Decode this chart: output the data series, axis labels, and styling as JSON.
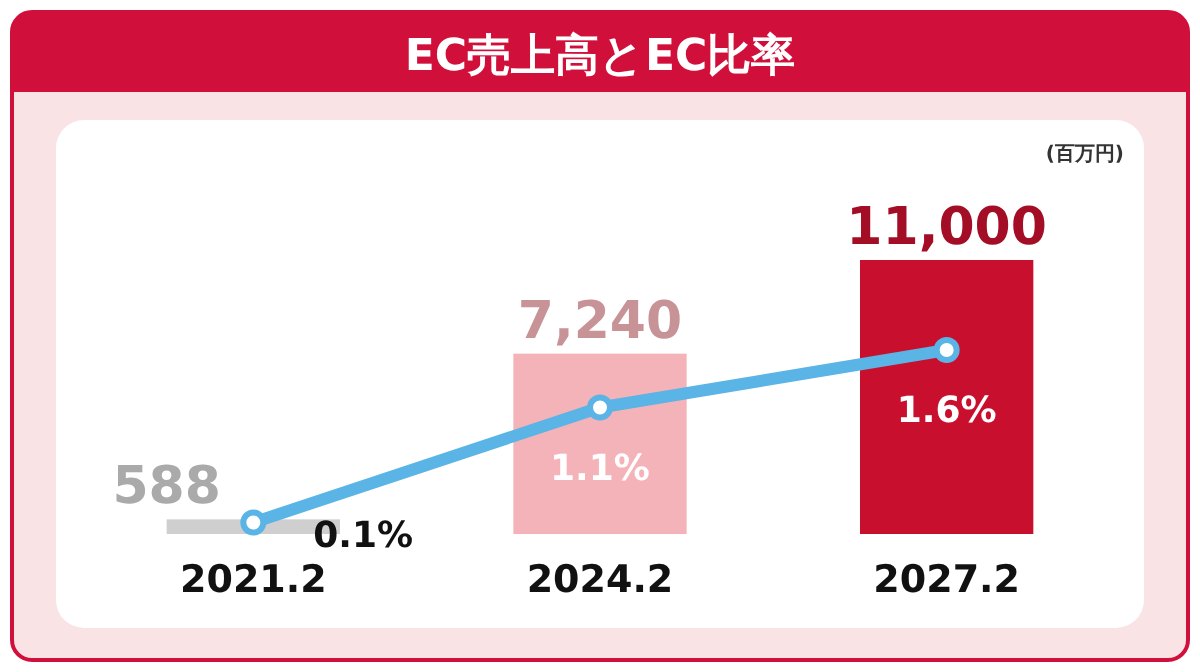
{
  "chart_data": {
    "type": "bar",
    "title": "EC売上高とEC比率",
    "ylabel": "(百万円)",
    "categories": [
      "2021.2",
      "2024.2",
      "2027.2"
    ],
    "marker": "circle",
    "series": [
      {
        "colors": [
          "#cfcfcf",
          "#f4b3b8",
          "#c8102e"
        ],
        "values": [
          588,
          7240,
          11000
        ],
        "value_labels": [
          "588",
          "7,240",
          "11,000"
        ]
      },
      {
        "type": "line",
        "axis": "y2",
        "color": "#5ab4e5",
        "values": [
          0.1,
          1.1,
          1.6
        ],
        "value_labels": [
          "0.1%",
          "1.1%",
          "1.6%"
        ]
      }
    ]
  }
}
